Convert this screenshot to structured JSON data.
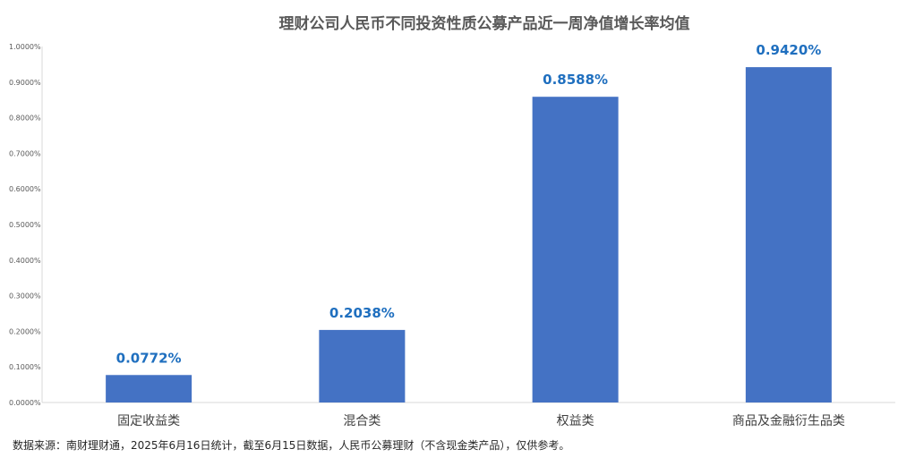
{
  "chart_data": {
    "type": "bar",
    "title": "理财公司人民币不同投资性质公募产品近一周净值增长率均值",
    "categories": [
      "固定收益类",
      "混合类",
      "权益类",
      "商品及金融衍生品类"
    ],
    "values": [
      0.0772,
      0.2038,
      0.8588,
      0.942
    ],
    "data_labels": [
      "0.0772%",
      "0.2038%",
      "0.8588%",
      "0.9420%"
    ],
    "ylim": [
      0,
      1.0
    ],
    "yticks": [
      0,
      0.1,
      0.2,
      0.3,
      0.4,
      0.5,
      0.6,
      0.7,
      0.8,
      0.9,
      1.0
    ],
    "ytick_labels": [
      "0.0000%",
      "0.1000%",
      "0.2000%",
      "0.3000%",
      "0.4000%",
      "0.5000%",
      "0.6000%",
      "0.7000%",
      "0.8000%",
      "0.9000%",
      "1.0000%"
    ],
    "grid": false,
    "bar_color": "#4472c4",
    "label_color": "#1f6fbf",
    "source_note": "数据来源：南财理财通，2025年6月16日统计，截至6月15日数据，人民币公募理财（不含现金类产品），仅供参考。"
  }
}
